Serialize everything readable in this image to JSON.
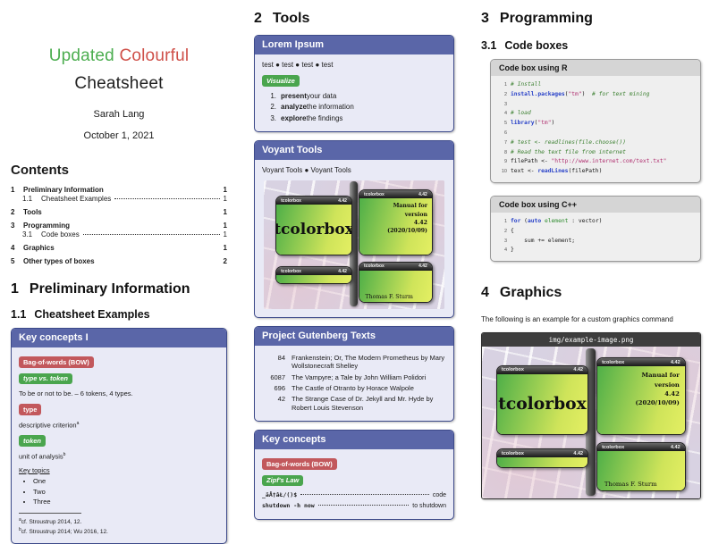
{
  "colors": {
    "accent_purple": "#5a66a8",
    "badge_red": "#c2585c",
    "badge_green": "#4aa54e",
    "title_green": "#4cae50",
    "title_red": "#cf5049"
  },
  "titleblock": {
    "word_green": "Updated",
    "word_red": "Colourful",
    "line2": "Cheatsheet",
    "author": "Sarah Lang",
    "date": "October 1, 2021"
  },
  "contents": {
    "heading": "Contents",
    "entries": [
      {
        "num": "1",
        "label": "Preliminary Information",
        "page": "1",
        "sub": false
      },
      {
        "num": "1.1",
        "label": "Cheatsheet Examples",
        "page": "1",
        "sub": true
      },
      {
        "num": "2",
        "label": "Tools",
        "page": "1",
        "sub": false
      },
      {
        "num": "3",
        "label": "Programming",
        "page": "1",
        "sub": false
      },
      {
        "num": "3.1",
        "label": "Code boxes",
        "page": "1",
        "sub": true
      },
      {
        "num": "4",
        "label": "Graphics",
        "page": "1",
        "sub": false
      },
      {
        "num": "5",
        "label": "Other types of boxes",
        "page": "2",
        "sub": false
      }
    ]
  },
  "sections": {
    "s1": {
      "num": "1",
      "title": "Preliminary Information"
    },
    "s11": {
      "num": "1.1",
      "title": "Cheatsheet Examples"
    },
    "s2": {
      "num": "2",
      "title": "Tools"
    },
    "s3": {
      "num": "3",
      "title": "Programming"
    },
    "s31": {
      "num": "3.1",
      "title": "Code boxes"
    },
    "s4": {
      "num": "4",
      "title": "Graphics"
    }
  },
  "keyconcepts1": {
    "title": "Key concepts I",
    "badge_bow": "Bag-of-words (BOW)",
    "badge_type_token": "type vs. token",
    "example_text": "To be or not to be. – 6 tokens, 4 types.",
    "badge_type": "type",
    "type_def": "descriptive criterion",
    "fn_a_mark": "a",
    "badge_token": "token",
    "token_def": "unit of analysis",
    "fn_b_mark": "b",
    "topics_heading": "Key topics",
    "topics": [
      "One",
      "Two",
      "Three"
    ],
    "footnote_a": "cf. Stroustrup 2014, 12.",
    "footnote_b": "cf. Stroustrup 2014; Wu 2016, 12."
  },
  "lorem": {
    "title": "Lorem Ipsum",
    "test_line": "test ● test ● test ● test",
    "badge": "Visualize",
    "list": [
      {
        "n": "1.",
        "bold": "present",
        "rest": " your data"
      },
      {
        "n": "2.",
        "bold": "analyze",
        "rest": " the information"
      },
      {
        "n": "3.",
        "bold": "explore",
        "rest": " the findings"
      }
    ]
  },
  "voyant": {
    "title": "Voyant Tools",
    "line": "Voyant Tools ● Voyant Tools"
  },
  "tcb_image": {
    "header_name": "tcolorbox",
    "header_version": "4.42",
    "main_label": "tcolorbox",
    "manual_label": "Manual for\nversion\n4.42\n(2020/10/09)",
    "author_label": "Thomas F. Sturm",
    "filename": "img/example-image.png"
  },
  "gutenberg": {
    "title": "Project Gutenberg Texts",
    "rows": [
      {
        "id": "84",
        "title": "Frankenstein; Or, The Modern Prometheus by Mary Wollstonecraft Shelley"
      },
      {
        "id": "6087",
        "title": "The Vampyre; a Tale by John William Polidori"
      },
      {
        "id": "696",
        "title": "The Castle of Otranto by Horace Walpole"
      },
      {
        "id": "42",
        "title": "The Strange Case of Dr. Jekyll and Mr. Hyde by Robert Louis Stevenson"
      }
    ]
  },
  "keyconcepts2": {
    "title": "Key concepts",
    "badge_bow": "Bag-of-words (BOW)",
    "badge_zipf": "Zipf's Law",
    "dict": [
      {
        "left": "_äÅ†âŁ/()$",
        "right": "code"
      },
      {
        "left": "shutdown -h now",
        "right": "to shutdown"
      }
    ]
  },
  "codeboxes": {
    "r_title": "Code box using R",
    "cpp_title": "Code box using C++",
    "r_lines": [
      [
        [
          "com",
          "# Install"
        ]
      ],
      [
        [
          "kw",
          "install.packages"
        ],
        [
          "",
          "("
        ],
        [
          "str",
          "\"tm\""
        ],
        [
          "",
          ")  "
        ],
        [
          "com",
          "# for text mining"
        ]
      ],
      [],
      [
        [
          "com",
          "# load"
        ]
      ],
      [
        [
          "kw",
          "library"
        ],
        [
          "",
          "("
        ],
        [
          "str",
          "\"tm\""
        ],
        [
          "",
          ")"
        ]
      ],
      [],
      [
        [
          "com",
          "# test <- readlines(file.choose())"
        ]
      ],
      [
        [
          "com",
          "# Read the text file from internet"
        ]
      ],
      [
        [
          "",
          "filePath <- "
        ],
        [
          "str",
          "\"http://www.internet.com/text.txt\""
        ]
      ],
      [
        [
          "",
          "text <- "
        ],
        [
          "kw",
          "readLines"
        ],
        [
          "",
          "(filePath)"
        ]
      ]
    ],
    "cpp_lines": [
      [
        [
          "kw",
          "for"
        ],
        [
          "",
          " ("
        ],
        [
          "kw",
          "auto"
        ],
        [
          "",
          " "
        ],
        [
          "em2",
          "element"
        ],
        [
          "",
          " : vector)"
        ]
      ],
      [
        [
          "",
          "{"
        ]
      ],
      [
        [
          "",
          "    sum += element;"
        ]
      ],
      [
        [
          "",
          "}"
        ]
      ]
    ]
  },
  "graphics": {
    "caption": "The following is an example for a custom graphics command"
  }
}
